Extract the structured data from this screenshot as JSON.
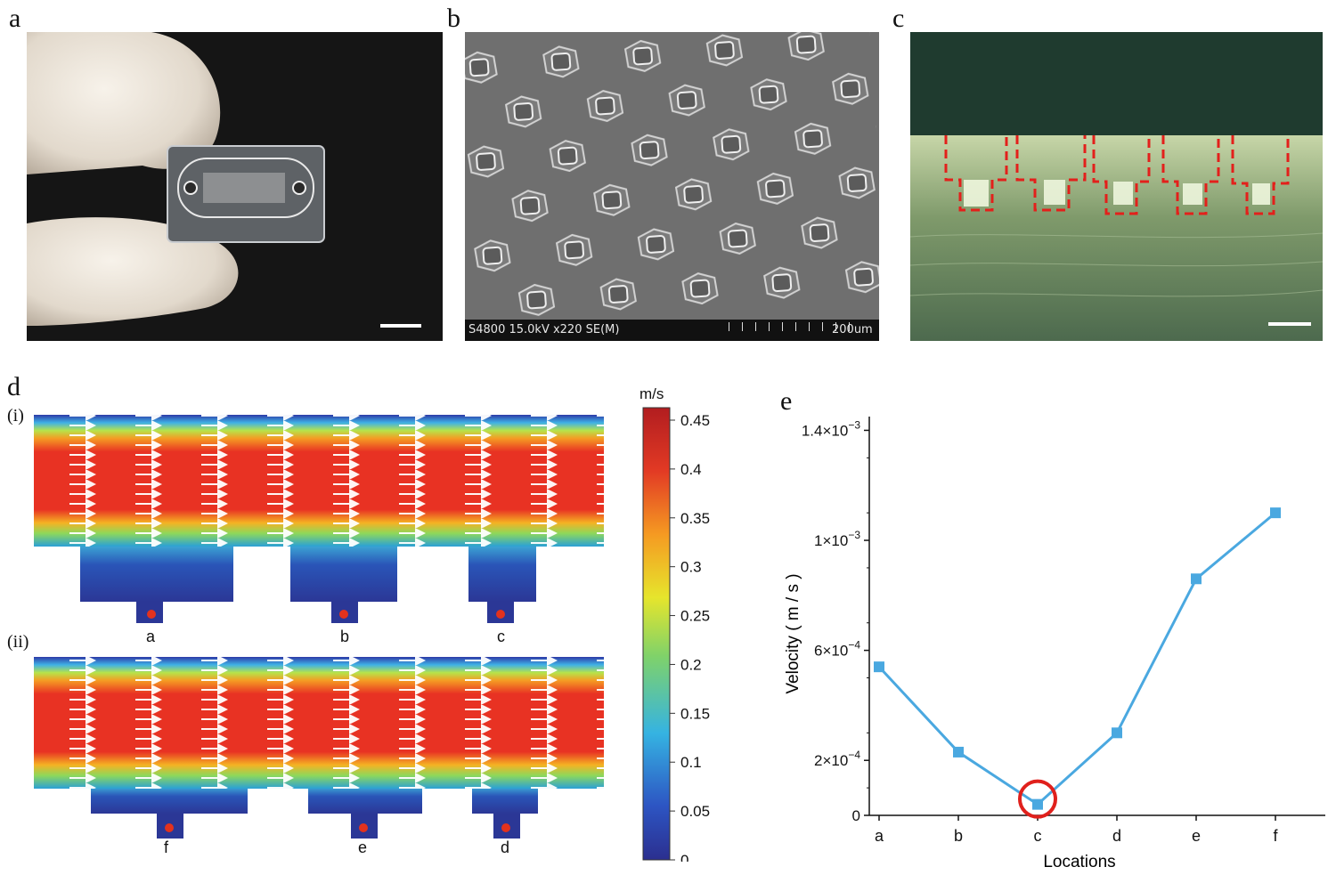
{
  "panels": {
    "a": {
      "letter": "a"
    },
    "b": {
      "letter": "b",
      "sem_info": "S4800 15.0kV x220 SE(M)",
      "scale_text": "200um"
    },
    "c": {
      "letter": "c"
    },
    "d": {
      "letter": "d",
      "sub_i": "(i)",
      "sub_ii": "(ii)",
      "locations_top": [
        "a",
        "b",
        "c"
      ],
      "locations_bottom": [
        "f",
        "e",
        "d"
      ],
      "colorbar": {
        "unit": "m/s",
        "ticks": [
          "0.45",
          "0.4",
          "0.35",
          "0.3",
          "0.25",
          "0.2",
          "0.15",
          "0.1",
          "0.05",
          "0"
        ]
      }
    },
    "e": {
      "letter": "e"
    }
  },
  "chart_data": {
    "type": "line",
    "categories": [
      "a",
      "b",
      "c",
      "d",
      "e",
      "f"
    ],
    "series": [
      {
        "values": [
          0.00054,
          0.00023,
          4e-05,
          0.0003,
          0.00086,
          0.0011
        ],
        "color": "#4aa8e0"
      }
    ],
    "xlabel": "Locations",
    "ylabel": "Velocity ( m / s )",
    "ylim": [
      0,
      0.00145
    ],
    "ytick_values": [
      0,
      0.0002,
      0.0006,
      0.001,
      0.0014
    ],
    "ytick_labels": [
      {
        "mantissa": "0",
        "exp": ""
      },
      {
        "mantissa": "2×10",
        "exp": "−4"
      },
      {
        "mantissa": "6×10",
        "exp": "−4"
      },
      {
        "mantissa": "1×10",
        "exp": "−3"
      },
      {
        "mantissa": "1.4×10",
        "exp": "−3"
      }
    ],
    "highlight_category": "c",
    "highlight_color": "#e0201c"
  }
}
